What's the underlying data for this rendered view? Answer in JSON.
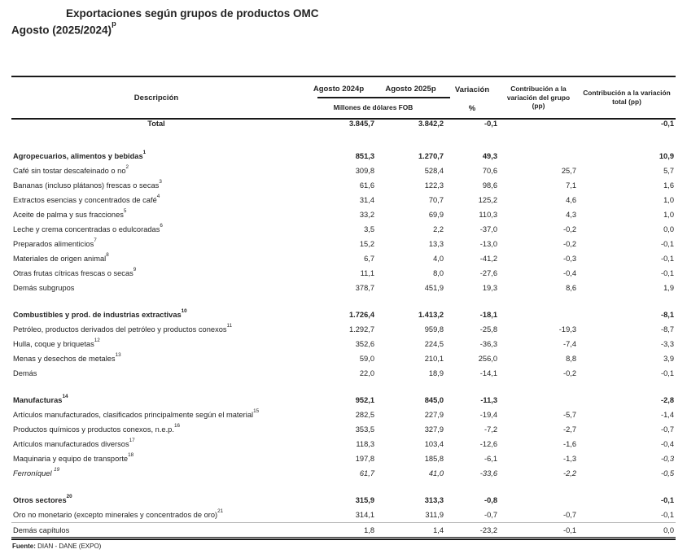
{
  "title": {
    "line1": "Exportaciones según grupos de productos OMC",
    "line2": "Agosto (2025/2024)",
    "line2_sup": "p"
  },
  "colors": {
    "text": "#232323",
    "border": "#1a1a1a",
    "row_separator": "#b5b5b5",
    "background": "#ffffff"
  },
  "table": {
    "headers": {
      "description": "Descripción",
      "col_2024": "Agosto 2024p",
      "col_2025": "Agosto 2025p",
      "units": "Millones de dólares FOB",
      "variation_line1": "Variación",
      "variation_line2": "%",
      "contrib_group": "Contribución a la variación del grupo (pp)",
      "contrib_total": "Contribución a la variación total (pp)"
    },
    "total_row": {
      "label": "Total",
      "v2024": "3.845,7",
      "v2025": "3.842,2",
      "var": "-0,1",
      "grp": "",
      "tot": "-0,1"
    },
    "sections": [
      {
        "rows": [
          {
            "label": "Agropecuarios, alimentos y bebidas",
            "sup": "1",
            "v2024": "851,3",
            "v2025": "1.270,7",
            "var": "49,3",
            "grp": "",
            "tot": "10,9",
            "bold": true
          },
          {
            "label": "Café sin tostar descafeinado o no",
            "sup": "2",
            "v2024": "309,8",
            "v2025": "528,4",
            "var": "70,6",
            "grp": "25,7",
            "tot": "5,7"
          },
          {
            "label": "Bananas (incluso plátanos) frescas o secas",
            "sup": "3",
            "v2024": "61,6",
            "v2025": "122,3",
            "var": "98,6",
            "grp": "7,1",
            "tot": "1,6"
          },
          {
            "label": "Extractos esencias y concentrados de café",
            "sup": "4",
            "v2024": "31,4",
            "v2025": "70,7",
            "var": "125,2",
            "grp": "4,6",
            "tot": "1,0"
          },
          {
            "label": "Aceite de palma y sus fracciones",
            "sup": "5",
            "v2024": "33,2",
            "v2025": "69,9",
            "var": "110,3",
            "grp": "4,3",
            "tot": "1,0"
          },
          {
            "label": "Leche y crema concentradas o edulcoradas",
            "sup": "6",
            "v2024": "3,5",
            "v2025": "2,2",
            "var": "-37,0",
            "grp": "-0,2",
            "tot": "0,0"
          },
          {
            "label": "Preparados alimenticios",
            "sup": "7",
            "v2024": "15,2",
            "v2025": "13,3",
            "var": "-13,0",
            "grp": "-0,2",
            "tot": "-0,1"
          },
          {
            "label": "Materiales de origen animal",
            "sup": "8",
            "v2024": "6,7",
            "v2025": "4,0",
            "var": "-41,2",
            "grp": "-0,3",
            "tot": "-0,1"
          },
          {
            "label": "Otras frutas cítricas frescas o secas",
            "sup": "9",
            "v2024": "11,1",
            "v2025": "8,0",
            "var": "-27,6",
            "grp": "-0,4",
            "tot": "-0,1"
          },
          {
            "label": "Demás subgrupos",
            "sup": "",
            "v2024": "378,7",
            "v2025": "451,9",
            "var": "19,3",
            "grp": "8,6",
            "tot": "1,9"
          }
        ]
      },
      {
        "rows": [
          {
            "label": "Combustibles y prod. de industrias extractivas",
            "sup": "10",
            "v2024": "1.726,4",
            "v2025": "1.413,2",
            "var": "-18,1",
            "grp": "",
            "tot": "-8,1",
            "bold": true
          },
          {
            "label": "Petróleo, productos derivados del petróleo y productos conexos",
            "sup": "11",
            "v2024": "1.292,7",
            "v2025": "959,8",
            "var": "-25,8",
            "grp": "-19,3",
            "tot": "-8,7"
          },
          {
            "label": "Hulla, coque y briquetas",
            "sup": "12",
            "v2024": "352,6",
            "v2025": "224,5",
            "var": "-36,3",
            "grp": "-7,4",
            "tot": "-3,3"
          },
          {
            "label": "Menas y desechos de metales",
            "sup": "13",
            "v2024": "59,0",
            "v2025": "210,1",
            "var": "256,0",
            "grp": "8,8",
            "tot": "3,9"
          },
          {
            "label": "Demás",
            "sup": "",
            "v2024": "22,0",
            "v2025": "18,9",
            "var": "-14,1",
            "grp": "-0,2",
            "tot": "-0,1"
          }
        ]
      },
      {
        "rows": [
          {
            "label": "Manufacturas",
            "sup": "14",
            "v2024": "952,1",
            "v2025": "845,0",
            "var": "-11,3",
            "grp": "",
            "tot": "-2,8",
            "bold": true
          },
          {
            "label": "Artículos manufacturados, clasificados principalmente según el material",
            "sup": "15",
            "v2024": "282,5",
            "v2025": "227,9",
            "var": "-19,4",
            "grp": "-5,7",
            "tot": "-1,4"
          },
          {
            "label": "Productos químicos y productos conexos, n.e.p.",
            "sup": "16",
            "v2024": "353,5",
            "v2025": "327,9",
            "var": "-7,2",
            "grp": "-2,7",
            "tot": "-0,7"
          },
          {
            "label": "Artículos manufacturados diversos",
            "sup": "17",
            "v2024": "118,3",
            "v2025": "103,4",
            "var": "-12,6",
            "grp": "-1,6",
            "tot": "-0,4"
          },
          {
            "label": "Maquinaria y equipo de transporte",
            "sup": "18",
            "v2024": "197,8",
            "v2025": "185,8",
            "var": "-6,1",
            "grp": "-1,3",
            "tot": "-0,3",
            "tot_italic": true
          },
          {
            "label": "Ferroníquel ",
            "sup": "19",
            "v2024": "61,7",
            "v2025": "41,0",
            "var": "-33,6",
            "grp": "-2,2",
            "tot": "-0,5",
            "italic": true
          }
        ]
      },
      {
        "rows": [
          {
            "label": "Otros sectores",
            "sup": "20",
            "v2024": "315,9",
            "v2025": "313,3",
            "var": "-0,8",
            "grp": "",
            "tot": "-0,1",
            "bold": true
          },
          {
            "label": "Oro no monetario (excepto minerales y concentrados de oro)",
            "sup": "21",
            "v2024": "314,1",
            "v2025": "311,9",
            "var": "-0,7",
            "grp": "-0,7",
            "tot": "-0,1"
          },
          {
            "label": "Demás capítulos",
            "sup": "",
            "v2024": "1,8",
            "v2025": "1,4",
            "var": "-23,2",
            "grp": "-0,1",
            "tot": "0,0",
            "separator_above": true
          }
        ]
      }
    ]
  },
  "footer": {
    "source_label": "Fuente:",
    "source_value": " DIAN - DANE (EXPO)"
  }
}
